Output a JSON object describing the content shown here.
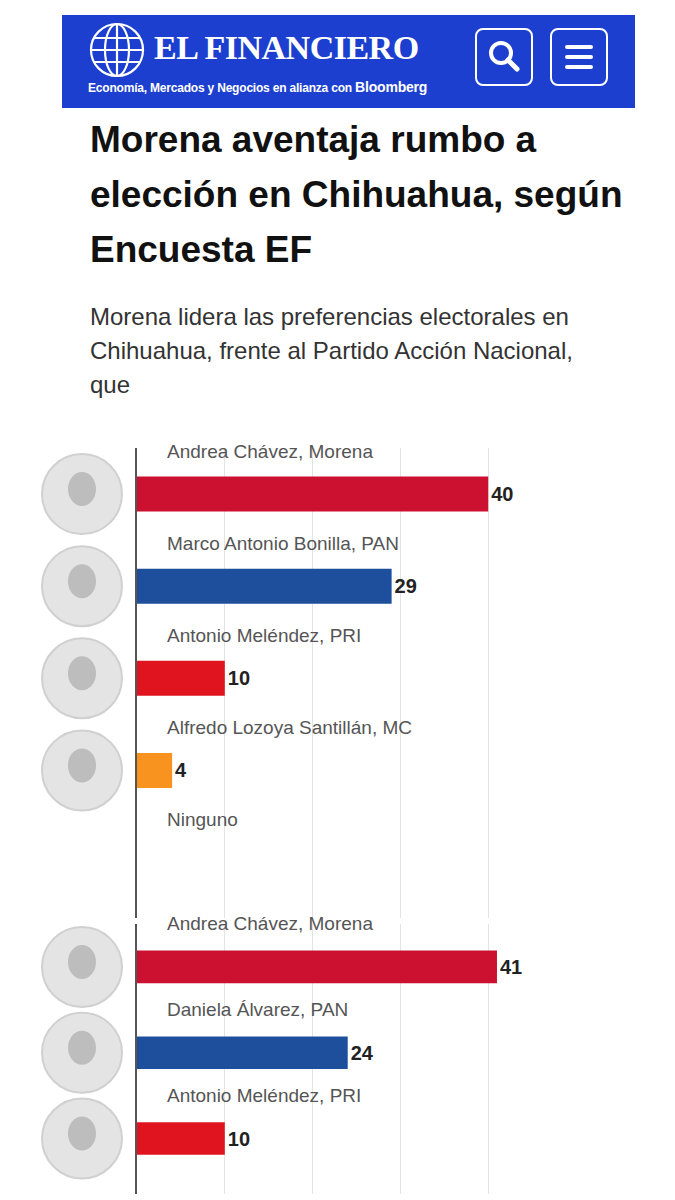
{
  "header": {
    "brand": "EL FINANCIERO",
    "tagline": "Economía, Mercados y Negocios en alianza con",
    "partner": "Bloomberg"
  },
  "article": {
    "headline": "Morena aventaja rumbo a elección en Chihuahua, según Encuesta EF",
    "lede": "Morena lidera las preferencias electorales en Chihuahua, frente al Partido Acción Nacional, que"
  },
  "chart_data": [
    {
      "type": "bar",
      "orientation": "horizontal",
      "categories": [
        "Andrea Chávez, Morena",
        "Marco Antonio Bonilla, PAN",
        "Antonio Meléndez, PRI",
        "Alfredo Lozoya Santillán, MC",
        "Ninguno"
      ],
      "values": [
        40,
        29,
        10,
        4,
        null
      ],
      "colors": [
        "#cc1130",
        "#1d4f9c",
        "#e0141e",
        "#f7931e",
        null
      ],
      "xlim": [
        0,
        50
      ],
      "xticks": [
        0,
        10,
        20,
        30,
        40,
        50
      ],
      "grid": true,
      "data_labels": true,
      "tick_labels": "y"
    },
    {
      "type": "bar",
      "orientation": "horizontal",
      "categories": [
        "Andrea Chávez, Morena",
        "Daniela Álvarez, PAN",
        "Antonio Meléndez, PRI"
      ],
      "values": [
        41,
        24,
        10
      ],
      "colors": [
        "#cc1130",
        "#1d4f9c",
        "#e0141e"
      ],
      "xlim": [
        0,
        50
      ],
      "xticks": [
        0,
        10,
        20,
        30,
        40,
        50
      ],
      "grid": true,
      "data_labels": true,
      "tick_labels": "y"
    }
  ]
}
